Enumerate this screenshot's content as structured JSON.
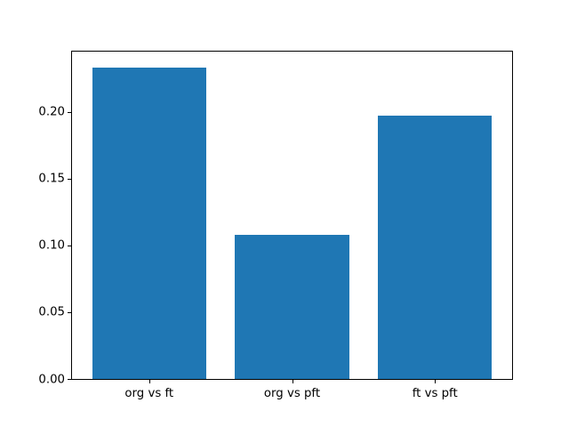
{
  "chart_data": {
    "type": "bar",
    "title": "",
    "xlabel": "",
    "ylabel": "",
    "categories": [
      "org vs ft",
      "org vs pft",
      "ft vs pft"
    ],
    "values": [
      0.233,
      0.108,
      0.197
    ],
    "ylim": [
      0,
      0.245
    ],
    "yticks": [
      0.0,
      0.05,
      0.1,
      0.15,
      0.2
    ],
    "ytick_labels": [
      "0.00",
      "0.05",
      "0.10",
      "0.15",
      "0.20"
    ],
    "bar_color": "#1f77b4",
    "spine_color": "#000000",
    "background_color": "#ffffff",
    "grid": false,
    "legend_position": "none"
  }
}
